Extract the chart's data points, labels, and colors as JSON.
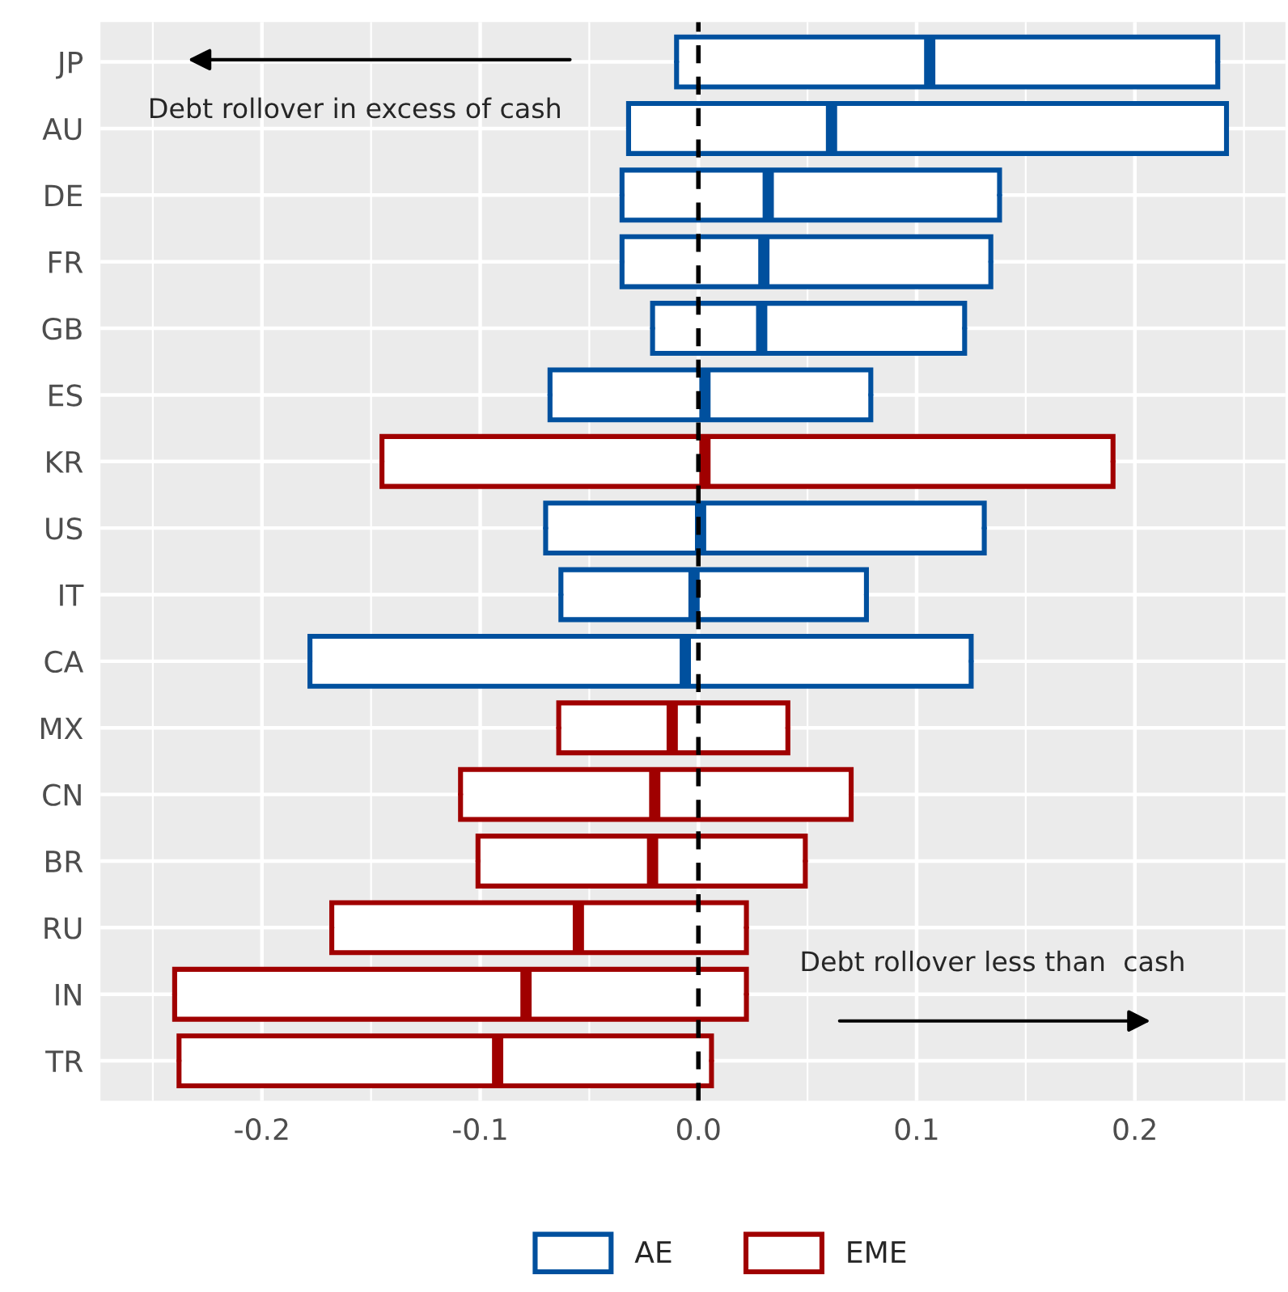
{
  "chart_data": {
    "type": "box",
    "orientation": "horizontal",
    "categories": [
      "JP",
      "AU",
      "DE",
      "FR",
      "GB",
      "ES",
      "KR",
      "US",
      "IT",
      "CA",
      "MX",
      "CN",
      "BR",
      "RU",
      "IN",
      "TR"
    ],
    "series": [
      {
        "name": "AE",
        "color": "#00509e",
        "boxes": [
          {
            "low": -0.01,
            "q1": -0.01,
            "median": 0.106,
            "q3": 0.238,
            "high": 0.238
          },
          {
            "low": -0.032,
            "q1": -0.032,
            "median": 0.061,
            "q3": 0.242,
            "high": 0.242
          },
          {
            "low": -0.035,
            "q1": -0.035,
            "median": 0.032,
            "q3": 0.138,
            "high": 0.138
          },
          {
            "low": -0.035,
            "q1": -0.035,
            "median": 0.03,
            "q3": 0.134,
            "high": 0.134
          },
          {
            "low": -0.021,
            "q1": -0.021,
            "median": 0.029,
            "q3": 0.122,
            "high": 0.122
          },
          {
            "low": -0.068,
            "q1": -0.068,
            "median": 0.003,
            "q3": 0.079,
            "high": 0.079
          },
          null,
          {
            "low": -0.07,
            "q1": -0.07,
            "median": 0.001,
            "q3": 0.131,
            "high": 0.131
          },
          {
            "low": -0.063,
            "q1": -0.063,
            "median": -0.002,
            "q3": 0.077,
            "high": 0.077
          },
          {
            "low": -0.178,
            "q1": -0.178,
            "median": -0.006,
            "q3": 0.125,
            "high": 0.125
          },
          null,
          null,
          null,
          null,
          null,
          null
        ]
      },
      {
        "name": "EME",
        "color": "#a00000",
        "boxes": [
          null,
          null,
          null,
          null,
          null,
          null,
          {
            "low": -0.145,
            "q1": -0.145,
            "median": 0.003,
            "q3": 0.19,
            "high": 0.19
          },
          null,
          null,
          null,
          {
            "low": -0.064,
            "q1": -0.064,
            "median": -0.012,
            "q3": 0.041,
            "high": 0.041
          },
          {
            "low": -0.109,
            "q1": -0.109,
            "median": -0.02,
            "q3": 0.07,
            "high": 0.07
          },
          {
            "low": -0.101,
            "q1": -0.101,
            "median": -0.021,
            "q3": 0.049,
            "high": 0.049
          },
          {
            "low": -0.168,
            "q1": -0.168,
            "median": -0.055,
            "q3": 0.022,
            "high": 0.022
          },
          {
            "low": -0.24,
            "q1": -0.24,
            "median": -0.079,
            "q3": 0.022,
            "high": 0.022
          },
          {
            "low": -0.238,
            "q1": -0.238,
            "median": -0.092,
            "q3": 0.006,
            "high": 0.006
          }
        ]
      }
    ],
    "xlim": [
      -0.274,
      0.269
    ],
    "xticks": [
      {
        "value": -0.2,
        "label": "-0.2"
      },
      {
        "value": -0.1,
        "label": "-0.1"
      },
      {
        "value": 0.0,
        "label": "0.0"
      },
      {
        "value": 0.1,
        "label": "0.1"
      },
      {
        "value": 0.2,
        "label": "0.2"
      }
    ],
    "ref_lines": [
      {
        "axis": "x",
        "value": 0.0,
        "color": "#000000",
        "line_style": "dashed"
      }
    ],
    "annotations": [
      "Debt rollover in excess of cash",
      "Debt rollover less than  cash"
    ],
    "grid": true,
    "legend": "bottom"
  }
}
